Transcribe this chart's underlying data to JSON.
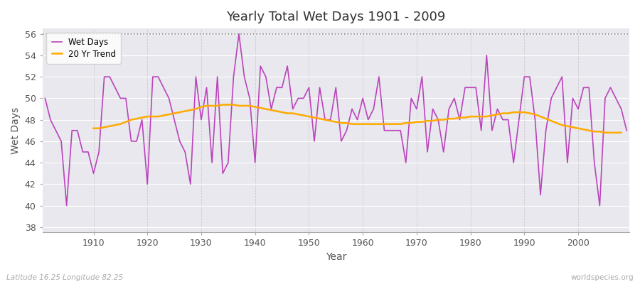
{
  "title": "Yearly Total Wet Days 1901 - 2009",
  "xlabel": "Year",
  "ylabel": "Wet Days",
  "bottom_left_label": "Latitude 16.25 Longitude 82.25",
  "bottom_right_label": "worldspecies.org",
  "legend_labels": [
    "Wet Days",
    "20 Yr Trend"
  ],
  "wet_days_color": "#bb44bb",
  "trend_color": "#ffaa00",
  "fig_bg_color": "#ffffff",
  "plot_bg_color": "#e8e8ee",
  "ylim": [
    37.5,
    56.5
  ],
  "yticks": [
    38,
    40,
    42,
    44,
    46,
    48,
    50,
    52,
    54,
    56
  ],
  "dotted_line_y": 56,
  "xtick_start": 1910,
  "xtick_end": 2010,
  "xtick_step": 10,
  "years": [
    1901,
    1902,
    1903,
    1904,
    1905,
    1906,
    1907,
    1908,
    1909,
    1910,
    1911,
    1912,
    1913,
    1914,
    1915,
    1916,
    1917,
    1918,
    1919,
    1920,
    1921,
    1922,
    1923,
    1924,
    1925,
    1926,
    1927,
    1928,
    1929,
    1930,
    1931,
    1932,
    1933,
    1934,
    1935,
    1936,
    1937,
    1938,
    1939,
    1940,
    1941,
    1942,
    1943,
    1944,
    1945,
    1946,
    1947,
    1948,
    1949,
    1950,
    1951,
    1952,
    1953,
    1954,
    1955,
    1956,
    1957,
    1958,
    1959,
    1960,
    1961,
    1962,
    1963,
    1964,
    1965,
    1966,
    1967,
    1968,
    1969,
    1970,
    1971,
    1972,
    1973,
    1974,
    1975,
    1976,
    1977,
    1978,
    1979,
    1980,
    1981,
    1982,
    1983,
    1984,
    1985,
    1986,
    1987,
    1988,
    1989,
    1990,
    1991,
    1992,
    1993,
    1994,
    1995,
    1996,
    1997,
    1998,
    1999,
    2000,
    2001,
    2002,
    2003,
    2004,
    2005,
    2006,
    2007,
    2008,
    2009
  ],
  "wet_days": [
    50,
    48,
    47,
    46,
    40,
    47,
    47,
    45,
    45,
    43,
    45,
    52,
    52,
    51,
    50,
    50,
    46,
    46,
    48,
    42,
    52,
    52,
    51,
    50,
    48,
    46,
    45,
    42,
    52,
    48,
    51,
    44,
    52,
    43,
    44,
    52,
    56,
    52,
    50,
    44,
    53,
    52,
    49,
    51,
    51,
    53,
    49,
    50,
    50,
    51,
    46,
    51,
    48,
    48,
    51,
    46,
    47,
    49,
    48,
    50,
    48,
    49,
    52,
    47,
    47,
    47,
    47,
    44,
    50,
    49,
    52,
    45,
    49,
    48,
    45,
    49,
    50,
    48,
    51,
    51,
    51,
    47,
    54,
    47,
    49,
    48,
    48,
    44,
    48,
    52,
    52,
    48,
    41,
    47,
    50,
    51,
    52,
    44,
    50,
    49,
    51,
    51,
    44,
    40,
    50,
    51,
    50,
    49,
    47
  ],
  "trend_start_year": 1910,
  "trend": [
    47.2,
    47.2,
    47.3,
    47.4,
    47.5,
    47.6,
    47.8,
    48.0,
    48.1,
    48.2,
    48.3,
    48.3,
    48.3,
    48.4,
    48.5,
    48.6,
    48.7,
    48.8,
    48.9,
    49.0,
    49.2,
    49.3,
    49.3,
    49.3,
    49.4,
    49.4,
    49.4,
    49.3,
    49.3,
    49.3,
    49.2,
    49.1,
    49.0,
    48.9,
    48.8,
    48.7,
    48.6,
    48.6,
    48.5,
    48.4,
    48.3,
    48.2,
    48.1,
    48.0,
    47.9,
    47.8,
    47.7,
    47.7,
    47.6,
    47.6,
    47.6,
    47.6,
    47.6,
    47.6,
    47.6,
    47.6,
    47.6,
    47.6,
    47.7,
    47.7,
    47.8,
    47.8,
    47.9,
    47.9,
    48.0,
    48.0,
    48.1,
    48.1,
    48.2,
    48.2,
    48.3,
    48.3,
    48.3,
    48.3,
    48.4,
    48.5,
    48.6,
    48.6,
    48.7,
    48.7,
    48.7,
    48.6,
    48.5,
    48.3,
    48.1,
    47.9,
    47.7,
    47.5,
    47.4,
    47.3,
    47.2,
    47.1,
    47.0,
    46.9,
    46.9,
    46.8,
    46.8,
    46.8,
    46.8
  ]
}
